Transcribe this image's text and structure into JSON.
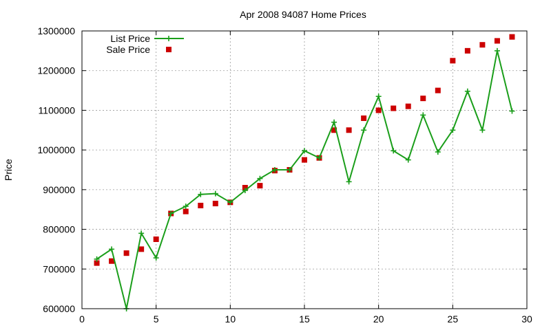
{
  "chart_data": {
    "type": "line",
    "title": "Apr 2008 94087 Home Prices",
    "xlabel": "",
    "ylabel": "Price",
    "xlim": [
      0,
      30
    ],
    "ylim": [
      600000,
      1300000
    ],
    "xticks": [
      "0",
      "5",
      "10",
      "15",
      "20",
      "25",
      "30"
    ],
    "yticks": [
      "600000",
      "700000",
      "800000",
      "900000",
      "1000000",
      "1100000",
      "1200000",
      "1300000"
    ],
    "xtick_values": [
      0,
      5,
      10,
      15,
      20,
      25,
      30
    ],
    "ytick_values": [
      600000,
      700000,
      800000,
      900000,
      1000000,
      1100000,
      1200000,
      1300000
    ],
    "grid": true,
    "legend_position": "top-left",
    "series": [
      {
        "name": "List Price",
        "style": "linespoints",
        "marker": "plus",
        "color": "#1a9e1a",
        "x": [
          1,
          2,
          3,
          4,
          5,
          6,
          7,
          8,
          9,
          10,
          11,
          12,
          13,
          14,
          15,
          16,
          17,
          18,
          19,
          20,
          21,
          22,
          23,
          24,
          25,
          26,
          27,
          28,
          29
        ],
        "values": [
          725000,
          750000,
          600000,
          790000,
          728000,
          840000,
          858000,
          888000,
          890000,
          868000,
          898000,
          928000,
          950000,
          950000,
          998000,
          980000,
          1070000,
          920000,
          1050000,
          1135000,
          998000,
          975000,
          1088000,
          995000,
          1050000,
          1148000,
          1050000,
          1250000,
          1098000
        ]
      },
      {
        "name": "Sale Price",
        "style": "points",
        "marker": "square",
        "color": "#cc0000",
        "x": [
          1,
          2,
          3,
          4,
          5,
          6,
          7,
          8,
          9,
          10,
          11,
          12,
          13,
          14,
          15,
          16,
          17,
          18,
          19,
          20,
          21,
          22,
          23,
          24,
          25,
          26,
          27,
          28,
          29
        ],
        "values": [
          715000,
          720000,
          740000,
          750000,
          775000,
          840000,
          845000,
          860000,
          865000,
          868000,
          905000,
          910000,
          948000,
          950000,
          975000,
          980000,
          1050000,
          1050000,
          1080000,
          1100000,
          1105000,
          1110000,
          1130000,
          1150000,
          1225000,
          1250000,
          1265000,
          1275000,
          1285000
        ]
      }
    ]
  }
}
